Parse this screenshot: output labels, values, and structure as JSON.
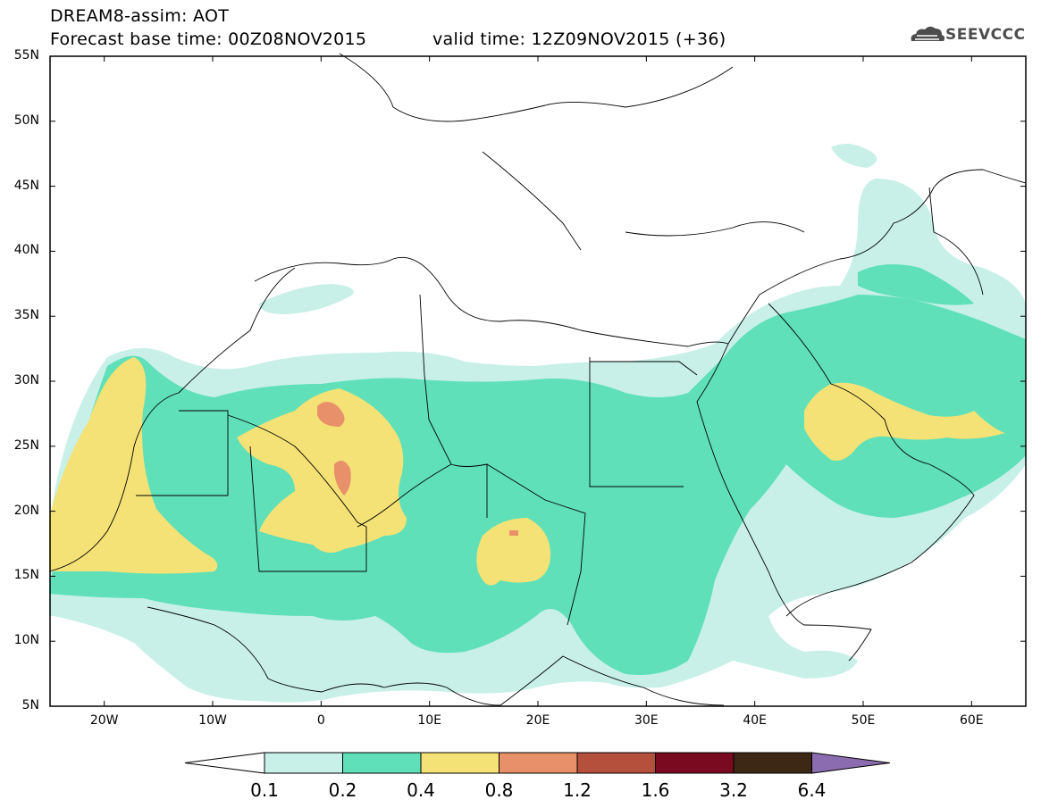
{
  "header": {
    "line1": "DREAM8-assim: AOT",
    "line2": "Forecast base time: 00Z08NOV2015",
    "valid": "valid time: 12Z09NOV2015 (+36)"
  },
  "logo": {
    "text": "SEEVCCC",
    "icon": "cloud-logo-icon"
  },
  "map": {
    "lat_range": [
      5,
      55
    ],
    "lon_range": [
      -25,
      65
    ],
    "lat_labels": [
      "55N",
      "50N",
      "45N",
      "40N",
      "35N",
      "30N",
      "25N",
      "20N",
      "15N",
      "10N",
      "5N"
    ],
    "lon_labels": [
      "20W",
      "10W",
      "0",
      "10E",
      "20E",
      "30E",
      "40E",
      "50E",
      "60E"
    ]
  },
  "colorbar": {
    "colors": [
      "#ffffff",
      "#c8f0e8",
      "#5fe0b8",
      "#f4e276",
      "#e8906a",
      "#b4503c",
      "#7a0a20",
      "#3c2814",
      "#8c6cb0"
    ],
    "levels": [
      "0.1",
      "0.2",
      "0.4",
      "0.8",
      "1.2",
      "1.6",
      "3.2",
      "6.4"
    ]
  }
}
